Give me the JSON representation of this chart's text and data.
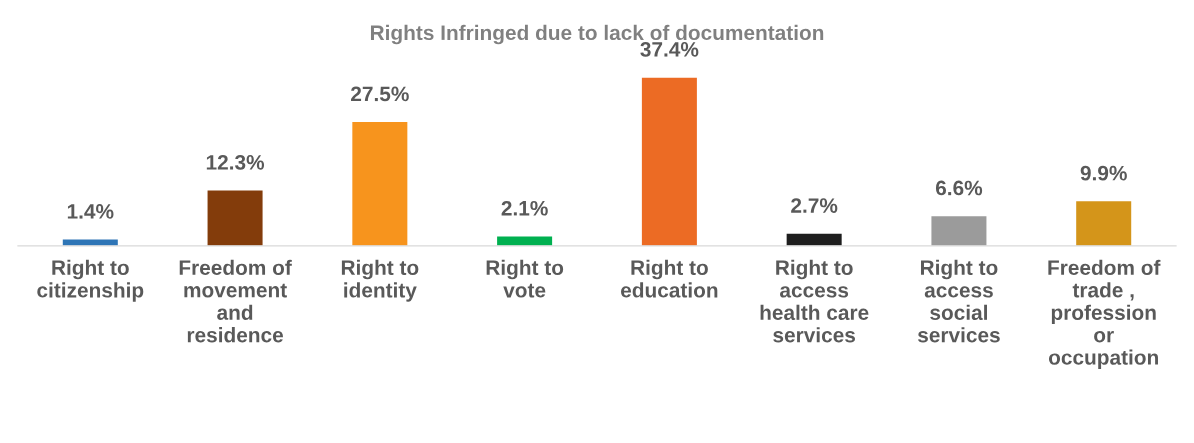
{
  "chart_data": {
    "type": "bar",
    "title": "Rights Infringed due to lack of documentation",
    "categories": [
      "Right to citizenship",
      "Freedom of movement and residence",
      "Right to identity",
      "Right to vote",
      "Right to education",
      "Right to access health care services",
      "Right to access social services",
      "Freedom of trade , profession or occupation"
    ],
    "values": [
      1.4,
      12.3,
      27.5,
      2.1,
      37.4,
      2.7,
      6.6,
      9.9
    ],
    "value_labels": [
      "1.4%",
      "12.3%",
      "27.5%",
      "2.1%",
      "37.4%",
      "2.7%",
      "6.6%",
      "9.9%"
    ],
    "colors": [
      "#2e75b6",
      "#833c0b",
      "#f7941d",
      "#00b050",
      "#ec6b24",
      "#1e1e1e",
      "#9b9b9b",
      "#d4951a"
    ],
    "grid": false,
    "legend": false
  }
}
